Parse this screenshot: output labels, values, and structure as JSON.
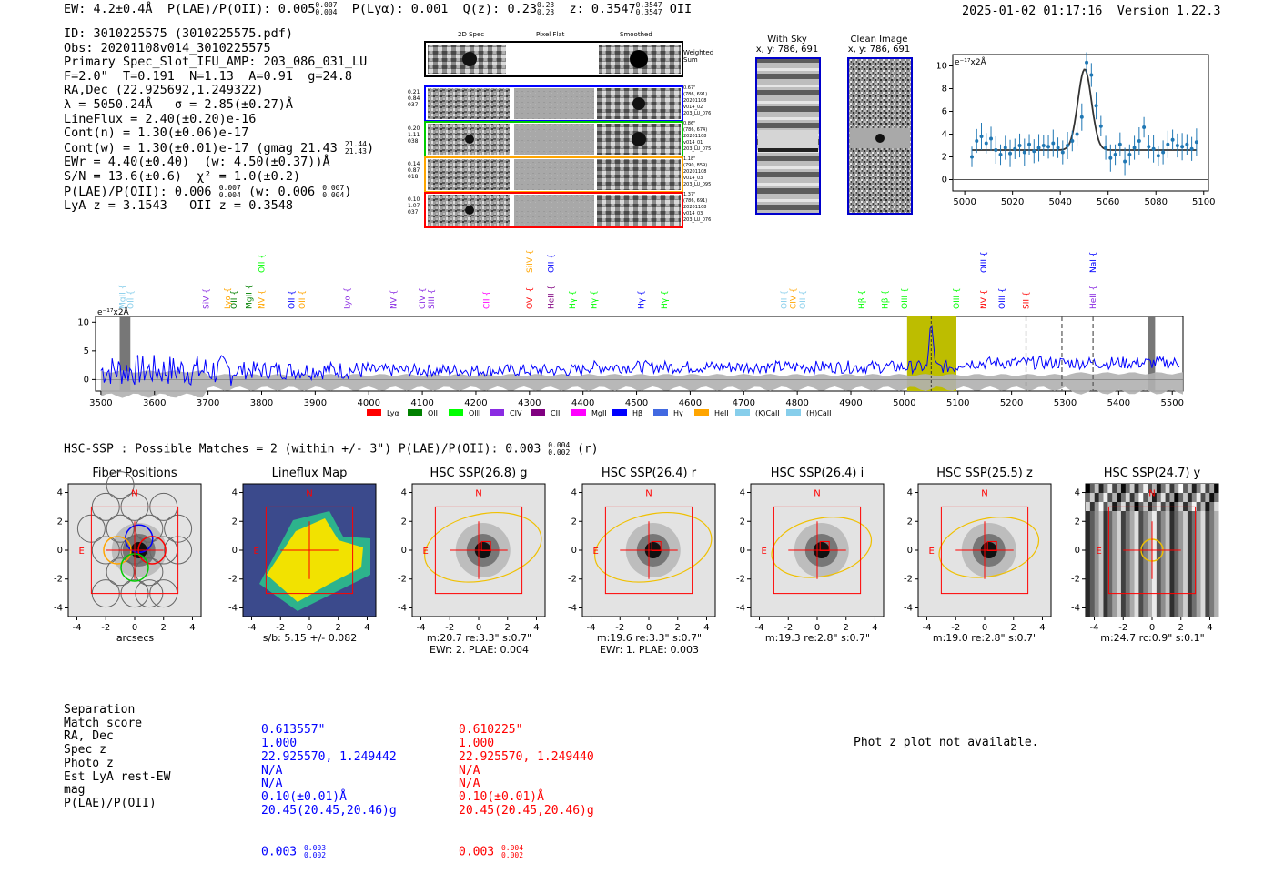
{
  "header": {
    "ew": "EW: 4.2±0.4Å",
    "plae_label": "P(LAE)/P(OII): 0.005",
    "plae_up": "0.007",
    "plae_dn": "0.004",
    "plya": "P(Lyα): 0.001",
    "qz_label": "Q(z): 0.23",
    "qz_up": "0.23",
    "qz_dn": "0.23",
    "z_label": "z: 0.3547",
    "z_up": "0.3547",
    "z_dn": "0.3547",
    "z_line": "OII",
    "timestamp": "2025-01-02 01:17:16",
    "version": "Version 1.22.3"
  },
  "info": {
    "id": "ID: 3010225575 (3010225575.pdf)",
    "obs": "Obs: 20201108v014_3010225575",
    "spec": "Primary Spec_Slot_IFU_AMP: 203_086_031_LU",
    "fparams": "F=2.0\"  T=0.191  N=1.13  A=0.91  g=24.8",
    "radec": "RA,Dec (22.925692,1.249322)",
    "lambda": "λ = 5050.24Å   σ = 2.85(±0.27)Å",
    "lineflux": "LineFlux = 2.40(±0.20)e-16",
    "contn": "Cont(n) = 1.30(±0.06)e-17",
    "contw": "Cont(w) = 1.30(±0.01)e-17 (gmag 21.43",
    "contw_up": "21.44",
    "contw_dn": "21.43",
    "ewr": "EWr = 4.40(±0.40)  (w: 4.50(±0.37))Å",
    "sn": "S/N = 13.6(±0.6)  χ² = 1.0(±0.2)",
    "plae": "P(LAE)/P(OII): 0.006",
    "plae_up": "0.007",
    "plae_dn": "0.004",
    "plae_w": "(w: 0.006",
    "plae_w_up": "0.007",
    "plae_w_dn": "0.004",
    "lya": "LyA z = 3.1543   OII z = 0.3548"
  },
  "cutouts": {
    "col_2d": "2D Spec",
    "col_flat": "Pixel Flat",
    "col_smooth": "Smoothed",
    "weighted": "Weighted\nSum",
    "rows": [
      {
        "vals": "0.21\n0.84\n037",
        "info": "0.67\"\n(786, 691)\n20201108\nv014_02\n203_LU_076",
        "color": "#0000ff"
      },
      {
        "vals": "0.20\n1.11\n038",
        "info": "0.86\"\n(786, 674)\n20201108\nv014_01\n203_LU_075",
        "color": "#00cc00"
      },
      {
        "vals": "0.14\n0.87\n018",
        "info": "1.18\"\n(790, 859)\n20201108\nv014_03\n203_LU_095",
        "color": "#ffa500"
      },
      {
        "vals": "0.10\n1.07\n037",
        "info": "1.37\"\n(786, 691)\n20201108\nv014_03\n203_LU_076",
        "color": "#ff0000"
      }
    ]
  },
  "skyimgs": {
    "with_sky": "With Sky",
    "with_sky_xy": "x, y: 786, 691",
    "clean": "Clean Image",
    "clean_xy": "x, y: 786, 691"
  },
  "chart_data": [
    {
      "type": "line",
      "title": "",
      "ylabel": "e⁻¹⁷x2Å",
      "xlim": [
        4995,
        5102
      ],
      "ylim": [
        -1,
        11
      ],
      "xticks": [
        "5000",
        "5020",
        "5040",
        "5060",
        "5080",
        "5100"
      ],
      "yticks": [
        "0",
        "2",
        "4",
        "6",
        "8",
        "10"
      ],
      "fit_gaussian": {
        "center": 5050.2,
        "sigma": 2.85,
        "amp": 7.1,
        "baseline": 2.6
      },
      "series": [
        {
          "name": "data",
          "x": [
            5003,
            5005,
            5007,
            5009,
            5011,
            5013,
            5015,
            5017,
            5019,
            5021,
            5023,
            5025,
            5027,
            5029,
            5031,
            5033,
            5035,
            5037,
            5039,
            5041,
            5043,
            5045,
            5047,
            5049,
            5051,
            5053,
            5055,
            5057,
            5059,
            5061,
            5063,
            5065,
            5067,
            5069,
            5071,
            5073,
            5075,
            5077,
            5079,
            5081,
            5083,
            5085,
            5087,
            5089,
            5091,
            5093,
            5095,
            5097
          ],
          "values": [
            2.0,
            3.4,
            3.8,
            3.2,
            3.6,
            2.6,
            2.2,
            2.8,
            2.3,
            2.7,
            3.0,
            2.4,
            3.1,
            2.5,
            2.8,
            3.0,
            2.9,
            3.2,
            2.8,
            2.4,
            3.0,
            3.4,
            4.0,
            5.5,
            10.3,
            9.2,
            6.5,
            4.7,
            2.8,
            1.9,
            2.2,
            3.1,
            1.6,
            2.2,
            2.8,
            3.4,
            4.6,
            2.9,
            2.7,
            2.1,
            2.4,
            3.1,
            3.5,
            3.0,
            2.9,
            3.1,
            2.7,
            3.3
          ]
        }
      ]
    },
    {
      "type": "line",
      "title": "",
      "ylabel": "e⁻¹⁷x2Å",
      "xlim": [
        3490,
        5520
      ],
      "ylim": [
        -2,
        11
      ],
      "xticks": [
        "3500",
        "3600",
        "3700",
        "3800",
        "3900",
        "4000",
        "4100",
        "4200",
        "4300",
        "4400",
        "4500",
        "4600",
        "4700",
        "4800",
        "4900",
        "5000",
        "5100",
        "5200",
        "5300",
        "5400",
        "5500"
      ],
      "yticks": [
        "0",
        "5",
        "10"
      ],
      "highlight_range": [
        5005,
        5097
      ],
      "grey_bands": [
        [
          3535,
          3555
        ],
        [
          5455,
          5468
        ]
      ],
      "dashed_lines": [
        5227,
        5294,
        5352
      ],
      "legend": [
        "Lyα",
        "OII",
        "OIII",
        "CIV",
        "CIII",
        "MgII",
        "Hβ",
        "Hγ",
        "HeII",
        "(K)CaII",
        "(H)CaII"
      ],
      "legend_colors": [
        "#ff0000",
        "#008000",
        "#00ff00",
        "#8a2be2",
        "#800080",
        "#ff00ff",
        "#0000ff",
        "#4169e1",
        "#ffa500",
        "#87ceeb",
        "#87ceeb"
      ],
      "line_labels": [
        {
          "label": "MgII",
          "x": 3540,
          "color": "#87ceeb",
          "tier": 1
        },
        {
          "label": "OII",
          "x": 3555,
          "color": "#87ceeb",
          "tier": 1
        },
        {
          "label": "SiV",
          "x": 3696,
          "color": "#8a2be2",
          "tier": 1
        },
        {
          "label": "Lyα",
          "x": 3736,
          "color": "#ffa500",
          "tier": 1
        },
        {
          "label": "OII",
          "x": 3748,
          "color": "#008000",
          "tier": 1
        },
        {
          "label": "MgII",
          "x": 3776,
          "color": "#008000",
          "tier": 1
        },
        {
          "label": "NV",
          "x": 3800,
          "color": "#ffa500",
          "tier": 1
        },
        {
          "label": "OII",
          "x": 3856,
          "color": "#0000ff",
          "tier": 1
        },
        {
          "label": "OII",
          "x": 3876,
          "color": "#ffa500",
          "tier": 1
        },
        {
          "label": "Lyα",
          "x": 3960,
          "color": "#8a2be2",
          "tier": 1
        },
        {
          "label": "NV",
          "x": 4046,
          "color": "#8a2be2",
          "tier": 1
        },
        {
          "label": "CIV",
          "x": 4100,
          "color": "#8a2be2",
          "tier": 1
        },
        {
          "label": "SIII",
          "x": 4117,
          "color": "#8a2be2",
          "tier": 1
        },
        {
          "label": "CII",
          "x": 4220,
          "color": "#ff00ff",
          "tier": 1
        },
        {
          "label": "OVI",
          "x": 4300,
          "color": "#ff0000",
          "tier": 1
        },
        {
          "label": "HeII",
          "x": 4340,
          "color": "#800080",
          "tier": 1
        },
        {
          "label": "Hγ",
          "x": 4380,
          "color": "#00ff00",
          "tier": 1
        },
        {
          "label": "Hγ",
          "x": 4420,
          "color": "#00ff00",
          "tier": 1
        },
        {
          "label": "Hγ",
          "x": 4508,
          "color": "#0000ff",
          "tier": 1
        },
        {
          "label": "Hγ",
          "x": 4552,
          "color": "#00ff00",
          "tier": 1
        },
        {
          "label": "OII",
          "x": 4775,
          "color": "#87ceeb",
          "tier": 1
        },
        {
          "label": "CIV",
          "x": 4792,
          "color": "#ffa500",
          "tier": 1
        },
        {
          "label": "OII",
          "x": 4810,
          "color": "#87ceeb",
          "tier": 1
        },
        {
          "label": "Hβ",
          "x": 4920,
          "color": "#00ff00",
          "tier": 1
        },
        {
          "label": "Hβ",
          "x": 4964,
          "color": "#00ff00",
          "tier": 1
        },
        {
          "label": "OIII",
          "x": 5000,
          "color": "#00ff00",
          "tier": 1
        },
        {
          "label": "OIII",
          "x": 5097,
          "color": "#00ff00",
          "tier": 1
        },
        {
          "label": "NV",
          "x": 5148,
          "color": "#ff0000",
          "tier": 1
        },
        {
          "label": "OIII",
          "x": 5182,
          "color": "#0000ff",
          "tier": 1
        },
        {
          "label": "SII",
          "x": 5227,
          "color": "#ff0000",
          "tier": 1
        },
        {
          "label": "HeII",
          "x": 5352,
          "color": "#8a2be2",
          "tier": 1
        },
        {
          "label": "OII",
          "x": 3800,
          "color": "#00ff00",
          "tier": 2
        },
        {
          "label": "SiIV",
          "x": 4300,
          "color": "#ffa500",
          "tier": 2
        },
        {
          "label": "OII",
          "x": 4340,
          "color": "#0000ff",
          "tier": 2
        },
        {
          "label": "OIII",
          "x": 5148,
          "color": "#0000ff",
          "tier": 2
        },
        {
          "label": "NaI",
          "x": 5352,
          "color": "#0000ff",
          "tier": 2
        }
      ],
      "series": [
        {
          "name": "flux",
          "color": "#0000ff"
        },
        {
          "name": "noise",
          "color": "#aaaaaa"
        }
      ]
    }
  ],
  "hsc": {
    "title": "HSC-SSP : Possible Matches = 2 (within +/- 3\")  P(LAE)/P(OII): 0.003",
    "title_up": "0.004",
    "title_dn": "0.002",
    "title_band": "(r)",
    "panels": [
      {
        "title": "Fiber Positions",
        "caption1": "arcsecs",
        "caption2": ""
      },
      {
        "title": "Lineflux Map",
        "caption1": "s/b: 5.15 +/- 0.082",
        "caption2": ""
      },
      {
        "title": "HSC SSP(26.8) g",
        "caption1": "m:20.7  re:3.3\"  s:0.7\"",
        "caption2": "EWr: 2. PLAE: 0.004"
      },
      {
        "title": "HSC SSP(26.4) r",
        "caption1": "m:19.6  re:3.3\"  s:0.7\"",
        "caption2": "EWr: 1. PLAE: 0.003"
      },
      {
        "title": "HSC SSP(26.4) i",
        "caption1": "m:19.3  re:2.8\"  s:0.7\"",
        "caption2": ""
      },
      {
        "title": "HSC SSP(25.5) z",
        "caption1": "m:19.0  re:2.8\"  s:0.7\"",
        "caption2": ""
      },
      {
        "title": "HSC SSP(24.7) y",
        "caption1": "m:24.7  rc:0.9\"  s:0.1\"",
        "caption2": ""
      }
    ],
    "axis_ticks": [
      "-4",
      "-2",
      "0",
      "2",
      "4"
    ],
    "n_label": "N",
    "e_label": "E"
  },
  "matches": {
    "labels": "Separation\nMatch score\nRA, Dec\nSpec z\nPhoto z\nEst LyA rest-EW\nmag\nP(LAE)/P(OII)",
    "m1": "0.613557\"\n1.000\n22.925570, 1.249442\nN/A\nN/A\n0.10(±0.01)Å\n20.45(20.45,20.46)g",
    "m1_plae": "0.003",
    "m1_up": "0.003",
    "m1_dn": "0.002",
    "m2": "0.610225\"\n1.000\n22.925570, 1.249440\nN/A\nN/A\n0.10(±0.01)Å\n20.45(20.45,20.46)g",
    "m2_plae": "0.003",
    "m2_up": "0.004",
    "m2_dn": "0.002",
    "photz": "Phot z plot not available."
  }
}
